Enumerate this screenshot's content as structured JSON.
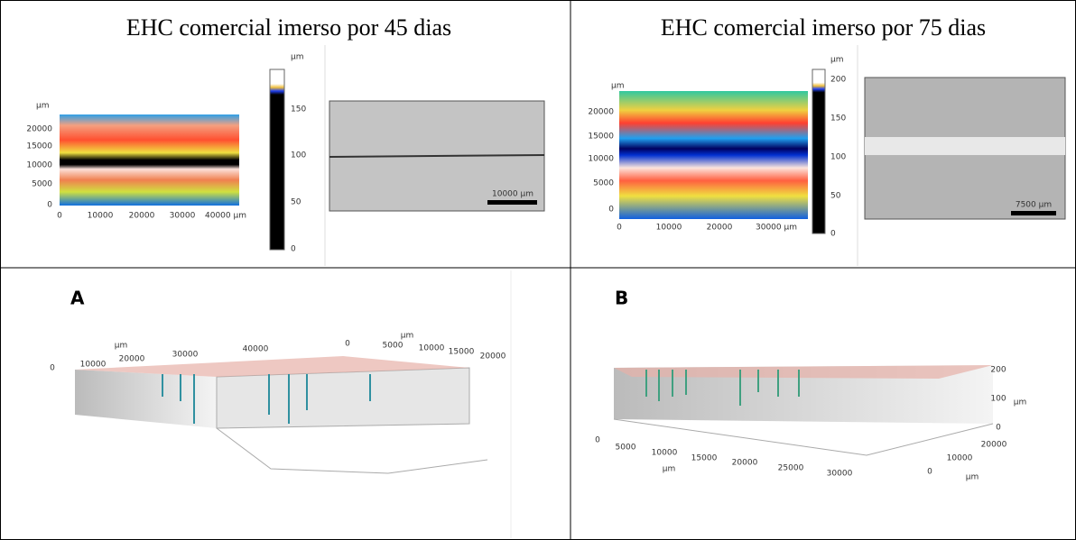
{
  "cells": [
    {
      "title": "EHC comercial imerso por 45 dias",
      "map": {
        "unit": "µm",
        "yticks": [
          "20000",
          "15000",
          "10000",
          "5000",
          "0"
        ],
        "xticks": [
          "0",
          "10000",
          "20000",
          "30000",
          "40000 µm"
        ]
      },
      "colorbar": {
        "unit": "µm",
        "ticks": [
          "150",
          "100",
          "50",
          "0"
        ]
      },
      "scale_bar": "10000 µm"
    },
    {
      "title": "EHC comercial imerso por 75 dias",
      "map": {
        "unit": "µm",
        "yticks": [
          "20000",
          "15000",
          "10000",
          "5000",
          "0"
        ],
        "xticks": [
          "0",
          "10000",
          "20000",
          "30000 µm"
        ]
      },
      "colorbar": {
        "unit": "µm",
        "ticks": [
          "200",
          "150",
          "100",
          "50",
          "0"
        ]
      },
      "scale_bar": "7500 µm"
    },
    {
      "label": "A",
      "axis_labels": [
        "µm",
        "0",
        "10000",
        "20000",
        "30000",
        "40000",
        "µm",
        "0",
        "5000",
        "10000",
        "15000",
        "20000"
      ]
    },
    {
      "label": "B",
      "axis_labels": [
        "200",
        "100",
        "µm",
        "0",
        "0",
        "5000",
        "10000",
        "15000",
        "20000",
        "25000",
        "30000",
        "µm",
        "20000",
        "10000",
        "0",
        "µm"
      ]
    }
  ]
}
